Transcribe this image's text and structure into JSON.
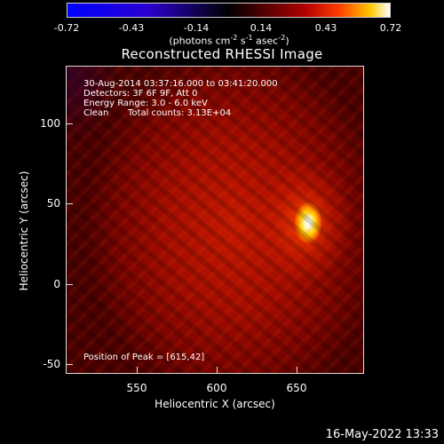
{
  "colorbar": {
    "ticks": [
      "-0.72",
      "-0.43",
      "-0.14",
      "0.14",
      "0.43",
      "0.72"
    ],
    "unit_main": "(photons cm",
    "unit_sup1": "-2",
    "unit_mid1": " s",
    "unit_sup2": "-1",
    "unit_mid2": " asec",
    "unit_sup3": "-2",
    "unit_end": ")"
  },
  "chart_data": {
    "type": "heatmap",
    "title": "Reconstructed RHESSI Image",
    "xlabel": "Heliocentric X (arcsec)",
    "ylabel": "Heliocentric Y (arcsec)",
    "xlim": [
      509,
      697
    ],
    "ylim": [
      -56,
      136
    ],
    "x_ticks": [
      "550",
      "600",
      "650"
    ],
    "y_ticks": [
      "100",
      "50",
      "0",
      "-50"
    ],
    "colorbar_range": [
      -0.72,
      0.72
    ],
    "peak": {
      "x": 615,
      "y": 42
    },
    "annotations": {
      "line1": "30-Aug-2014 03:37:16.000 to 03:41:20.000",
      "line2": "Detectors: 3F 6F 9F, Att 0",
      "line3": "Energy Range: 3.0 - 6.0 keV",
      "line4a": "Clean",
      "line4b": "Total counts: 3.13E+04",
      "peak_label": "Position of Peak = [615,42]"
    }
  },
  "footer": {
    "timestamp": "16-May-2022 13:33"
  }
}
